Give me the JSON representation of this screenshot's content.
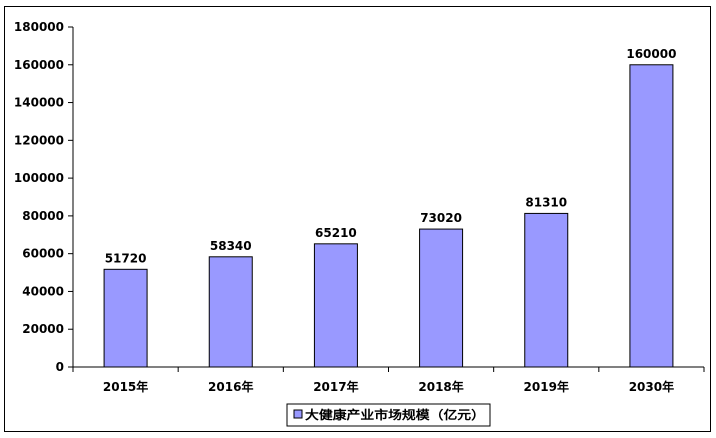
{
  "chart_data": {
    "type": "bar",
    "categories": [
      "2015年",
      "2016年",
      "2017年",
      "2018年",
      "2019年",
      "2030年"
    ],
    "series": [
      {
        "name": "大健康产业市场规模（亿元）",
        "values": [
          51720,
          58340,
          65210,
          73020,
          81310,
          160000
        ],
        "color": "#9999ff"
      }
    ],
    "data_labels": [
      "51720",
      "58340",
      "65210",
      "73020",
      "81310",
      "160000"
    ],
    "y_ticks": [
      "0",
      "20000",
      "40000",
      "60000",
      "80000",
      "100000",
      "120000",
      "140000",
      "160000",
      "180000"
    ],
    "ylim": [
      0,
      180000
    ],
    "grid": false,
    "legend_position": "bottom"
  }
}
